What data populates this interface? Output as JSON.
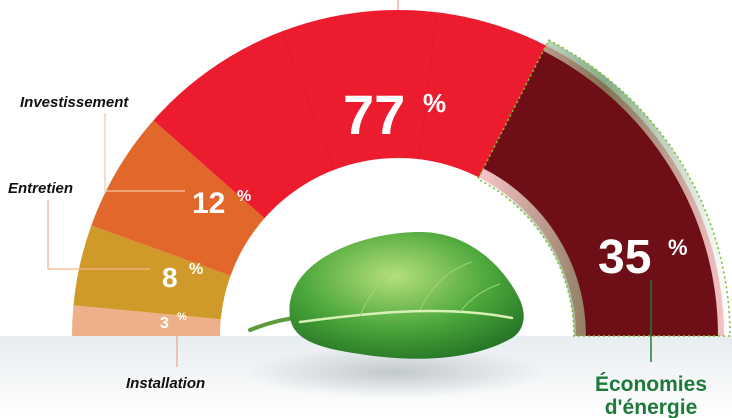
{
  "chart_data": {
    "type": "pie",
    "series": [
      {
        "name": "Installation",
        "value": 3,
        "value_label": "3",
        "unit": "%",
        "color": "#eeb08a"
      },
      {
        "name": "Entretien",
        "value": 8,
        "value_label": "8",
        "unit": "%",
        "color": "#cf9a2a"
      },
      {
        "name": "Investissement",
        "value": 12,
        "value_label": "12",
        "unit": "%",
        "color": "#e2672a"
      },
      {
        "name": "",
        "value": 77,
        "value_label": "77",
        "unit": "%",
        "color": "#ec1c2e"
      }
    ],
    "highlight": {
      "name_line1": "Économies",
      "name_line2": "d'énergie",
      "value": 35,
      "value_label": "35",
      "unit": "%",
      "color": "#6e0f17"
    },
    "accent_green": "#1e7a3a",
    "decoration": "leaf-icon"
  }
}
